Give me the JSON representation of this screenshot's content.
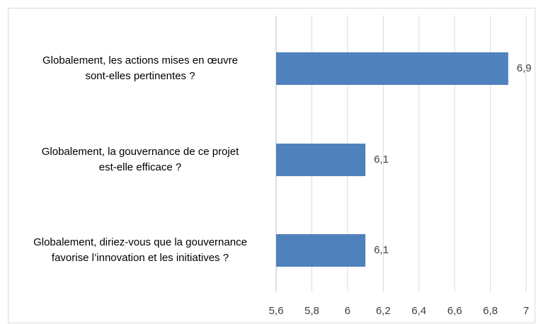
{
  "chart_data": {
    "type": "barh",
    "categories": [
      "Globalement, les actions mises en œuvre\nsont-elles pertinentes ?",
      "Globalement, la gouvernance de ce projet\nest-elle efficace ?",
      "Globalement, diriez-vous que la gouvernance\nfavorise l’innovation et les initiatives ?"
    ],
    "values": [
      6.9,
      6.1,
      6.1
    ],
    "value_labels": [
      "6,9",
      "6,1",
      "6,1"
    ],
    "color": "#4f81bd",
    "xlim": [
      5.6,
      7
    ],
    "xticks": [
      {
        "value": 5.6,
        "label": "5,6"
      },
      {
        "value": 5.8,
        "label": "5,8"
      },
      6,
      {
        "value": 6.2,
        "label": "6,2"
      },
      {
        "value": 6.4,
        "label": "6,4"
      },
      {
        "value": 6.6,
        "label": "6,6"
      },
      {
        "value": 6.8,
        "label": "6,8"
      },
      7
    ],
    "grid": true
  }
}
